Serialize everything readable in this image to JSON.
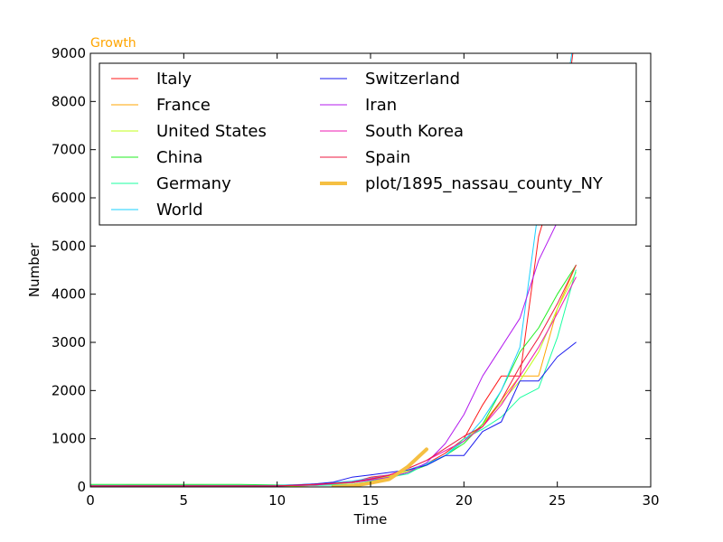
{
  "chart_data": {
    "type": "line",
    "title": "Growth",
    "title_color": "#ffa500",
    "xlabel": "Time",
    "ylabel": "Number",
    "xlim": [
      0,
      30
    ],
    "ylim": [
      0,
      9000
    ],
    "xticks": [
      0,
      5,
      10,
      15,
      20,
      25,
      30
    ],
    "yticks": [
      0,
      1000,
      2000,
      3000,
      4000,
      5000,
      6000,
      7000,
      8000,
      9000
    ],
    "grid": false,
    "legend_position": "top",
    "legend_columns": 2,
    "series": [
      {
        "name": "Italy",
        "color": "#ff1a1a",
        "width": 1,
        "x": [
          0,
          2,
          4,
          6,
          8,
          10,
          12,
          14,
          15,
          16,
          17,
          18,
          19,
          20,
          21,
          22,
          23,
          24,
          25,
          26
        ],
        "y": [
          20,
          30,
          30,
          30,
          20,
          20,
          60,
          100,
          200,
          250,
          350,
          480,
          700,
          1000,
          1700,
          2300,
          2300,
          5200,
          6500,
          9500
        ]
      },
      {
        "name": "France",
        "color": "#ffa500",
        "width": 1,
        "x": [
          0,
          2,
          4,
          6,
          8,
          10,
          12,
          14,
          15,
          16,
          17,
          18,
          19,
          20,
          21,
          22,
          23,
          24,
          25,
          26
        ],
        "y": [
          10,
          10,
          10,
          10,
          10,
          10,
          30,
          80,
          150,
          220,
          330,
          480,
          650,
          950,
          1300,
          1800,
          2300,
          2300,
          3700,
          4600
        ]
      },
      {
        "name": "United States",
        "color": "#c0ff1a",
        "width": 1,
        "x": [
          0,
          2,
          4,
          6,
          8,
          10,
          12,
          14,
          15,
          16,
          17,
          18,
          19,
          20,
          21,
          22,
          23,
          24,
          25,
          26
        ],
        "y": [
          10,
          10,
          10,
          10,
          10,
          10,
          30,
          80,
          150,
          220,
          330,
          480,
          650,
          950,
          1300,
          1750,
          2200,
          2800,
          3700,
          4450
        ]
      },
      {
        "name": "China",
        "color": "#22ee22",
        "width": 1,
        "x": [
          0,
          2,
          4,
          6,
          8,
          10,
          12,
          14,
          15,
          16,
          17,
          18,
          19,
          20,
          21,
          22,
          23,
          24,
          25,
          26
        ],
        "y": [
          50,
          50,
          50,
          50,
          50,
          40,
          40,
          40,
          100,
          180,
          300,
          450,
          650,
          900,
          1300,
          2000,
          2800,
          3300,
          4000,
          4600
        ]
      },
      {
        "name": "Germany",
        "color": "#1affa0",
        "width": 1,
        "x": [
          0,
          2,
          4,
          6,
          8,
          10,
          12,
          14,
          15,
          16,
          17,
          18,
          19,
          20,
          21,
          22,
          23,
          24,
          25,
          26
        ],
        "y": [
          30,
          30,
          30,
          30,
          30,
          30,
          30,
          50,
          120,
          200,
          270,
          480,
          650,
          1000,
          1200,
          1450,
          1850,
          2050,
          3100,
          4500
        ]
      },
      {
        "name": "World",
        "color": "#1ad0ff",
        "width": 1,
        "x": [
          0,
          2,
          4,
          6,
          8,
          10,
          12,
          14,
          15,
          16,
          17,
          18,
          19,
          20,
          21,
          22,
          23,
          24,
          25,
          26
        ],
        "y": [
          30,
          30,
          30,
          30,
          30,
          30,
          60,
          120,
          180,
          250,
          350,
          480,
          650,
          950,
          1400,
          2000,
          2900,
          5800,
          7200,
          9500
        ]
      },
      {
        "name": "Switzerland",
        "color": "#1a1aee",
        "width": 1,
        "x": [
          0,
          2,
          4,
          6,
          8,
          10,
          12,
          13,
          14,
          15,
          16,
          17,
          18,
          19,
          20,
          21,
          22,
          23,
          24,
          25,
          26
        ],
        "y": [
          20,
          20,
          20,
          20,
          20,
          20,
          60,
          100,
          200,
          250,
          300,
          350,
          450,
          650,
          650,
          1150,
          1350,
          2200,
          2200,
          2700,
          3000
        ]
      },
      {
        "name": "Iran",
        "color": "#b31aee",
        "width": 1,
        "x": [
          0,
          2,
          4,
          6,
          8,
          10,
          12,
          14,
          15,
          16,
          17,
          18,
          19,
          20,
          21,
          22,
          23,
          24,
          25,
          26
        ],
        "y": [
          20,
          20,
          20,
          20,
          20,
          20,
          40,
          90,
          140,
          200,
          300,
          500,
          900,
          1500,
          2300,
          2900,
          3500,
          4700,
          5500,
          6500
        ]
      },
      {
        "name": "South Korea",
        "color": "#ee1ab3",
        "width": 1,
        "x": [
          0,
          2,
          4,
          6,
          8,
          10,
          12,
          14,
          15,
          16,
          17,
          18,
          19,
          20,
          21,
          22,
          23,
          24,
          25,
          26
        ],
        "y": [
          20,
          20,
          20,
          20,
          20,
          20,
          40,
          100,
          170,
          250,
          380,
          550,
          750,
          950,
          1250,
          1700,
          2300,
          2900,
          3600,
          4350
        ]
      },
      {
        "name": "Spain",
        "color": "#ee1a40",
        "width": 1,
        "x": [
          0,
          2,
          4,
          6,
          8,
          10,
          12,
          14,
          15,
          16,
          17,
          18,
          19,
          20,
          21,
          22,
          23,
          24,
          25,
          26
        ],
        "y": [
          20,
          20,
          20,
          20,
          20,
          20,
          50,
          100,
          160,
          240,
          380,
          550,
          800,
          1050,
          1250,
          1800,
          2500,
          3100,
          3800,
          4600
        ]
      },
      {
        "name": "plot/1895_nassau_county_NY",
        "color": "#f5bf42",
        "width": 4,
        "x": [
          13,
          14,
          15,
          16,
          17,
          18
        ],
        "y": [
          0,
          20,
          80,
          160,
          420,
          780
        ]
      }
    ]
  }
}
